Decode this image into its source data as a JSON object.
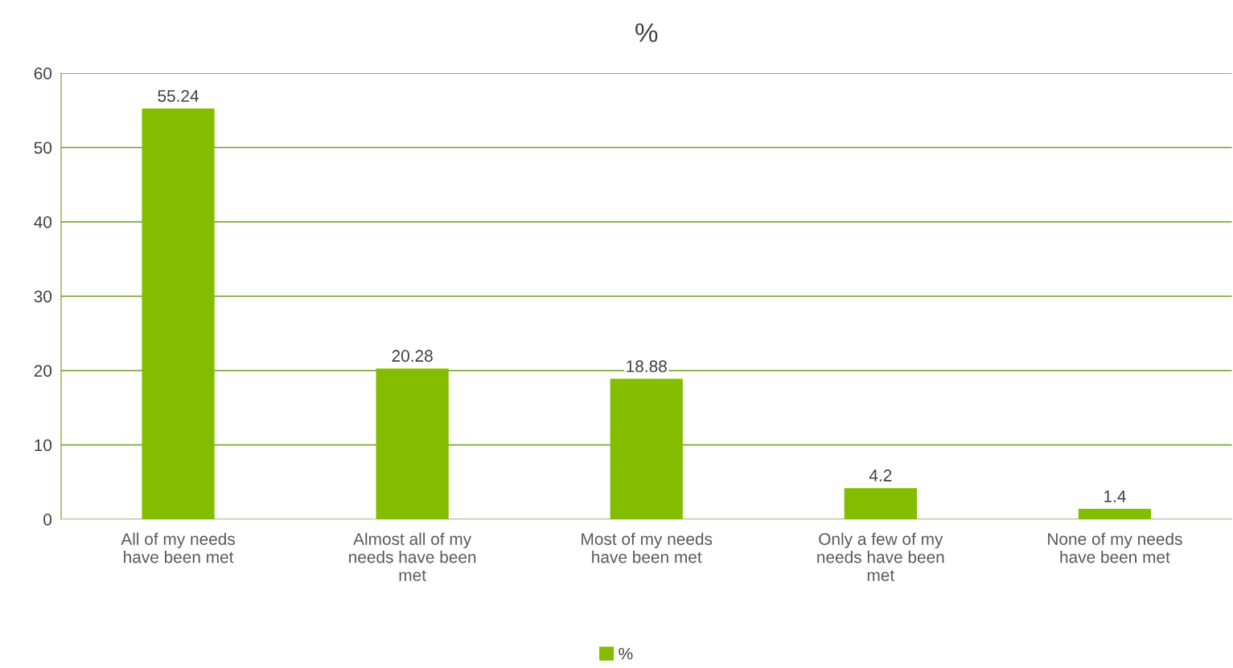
{
  "chart_data": {
    "type": "bar",
    "title": "%",
    "categories": [
      "All of my needs\nhave been met",
      "Almost all of my\nneeds have been\nmet",
      "Most of my needs\nhave been met",
      "Only a few of my\nneeds have been\nmet",
      "None of my needs\nhave been met"
    ],
    "series": [
      {
        "name": "%",
        "color": "#84bd00",
        "values": [
          55.24,
          20.28,
          18.88,
          4.2,
          1.4
        ]
      }
    ],
    "ylim": [
      0,
      60
    ],
    "yticks": [
      0,
      10,
      20,
      30,
      40,
      50,
      60
    ],
    "grid": "y",
    "legend": "bottom",
    "data_labels": true
  }
}
